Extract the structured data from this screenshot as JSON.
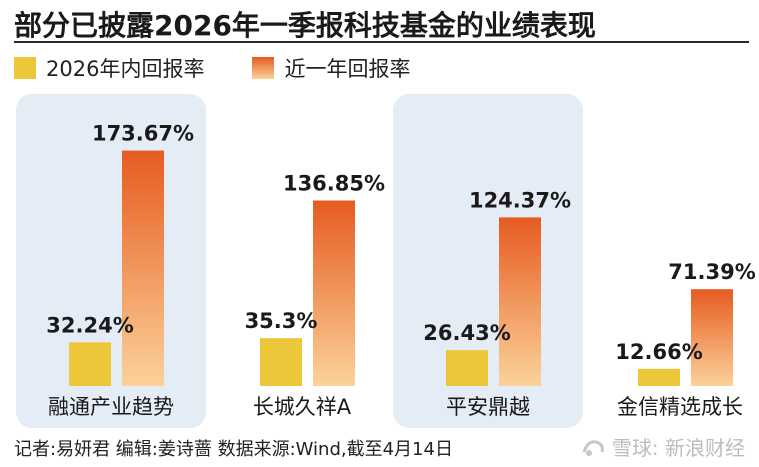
{
  "title": "部分已披露2026年一季报科技基金的业绩表现",
  "colors": {
    "series1": "#ecc73a",
    "series2_top": "#e65b20",
    "series2_bottom": "#fbd29a",
    "panel": "#e4ecf6"
  },
  "chart_data": {
    "type": "bar",
    "categories": [
      "融通产业趋势",
      "长城久祥A",
      "平安鼎越",
      "金信精选成长"
    ],
    "series": [
      {
        "name": "2026年内回报率",
        "values": [
          32.24,
          35.3,
          26.43,
          12.66
        ],
        "labels": [
          "32.24%",
          "35.3%",
          "26.43%",
          "12.66%"
        ]
      },
      {
        "name": "近一年回报率",
        "values": [
          173.67,
          136.85,
          124.37,
          71.39
        ],
        "labels": [
          "173.67%",
          "136.85%",
          "124.37%",
          "71.39%"
        ]
      }
    ],
    "highlighted_categories": [
      0,
      2
    ],
    "ylim": [
      0,
      180
    ],
    "grid": false,
    "legend": "top-left"
  },
  "footer": "记者:易妍君   编辑:姜诗蔷   数据来源:Wind,截至4月14日",
  "watermark": "雪球: 新浪财经"
}
